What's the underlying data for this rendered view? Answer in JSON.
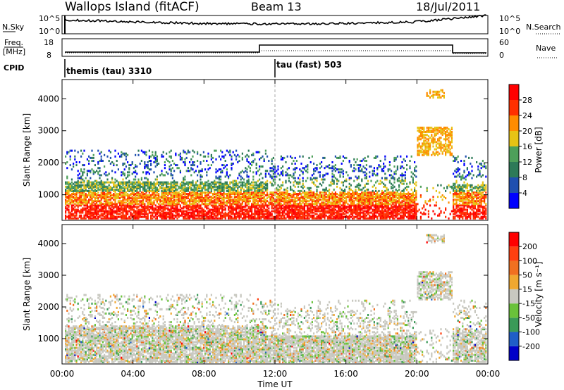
{
  "header": {
    "station": "Wallops Island (fitACF)",
    "beam": "Beam 13",
    "date": "18/Jul/2011"
  },
  "nsky_panel": {
    "left_label": "N.Sky",
    "left_ticks": [
      "10^5",
      "10^0"
    ],
    "right_label": "N.Search",
    "right_ticks": [
      "10^5",
      "10^0"
    ]
  },
  "freq_panel": {
    "left_label_top": "Freq.",
    "left_label_bottom": "[MHz]",
    "left_ticks": [
      "18",
      "8"
    ],
    "right_label": "Nave",
    "right_ticks": [
      "60",
      "0"
    ]
  },
  "cpid_panel": {
    "label": "CPID",
    "modes": [
      {
        "name": "themis (tau) 3310",
        "start": "00:00",
        "end": "12:00"
      },
      {
        "name": "tau (fast) 503",
        "start": "12:00",
        "end": "00:00"
      }
    ]
  },
  "chart_data": [
    {
      "type": "heatmap",
      "title": "",
      "xlabel": "",
      "ylabel": "Slant Range [km]",
      "ylim": [
        200,
        4600
      ],
      "yticks": [
        "1000",
        "2000",
        "3000",
        "4000"
      ],
      "colorbar": {
        "label": "Power [dB]",
        "ticks": [
          "4",
          "8",
          "12",
          "16",
          "20",
          "24",
          "28"
        ],
        "colors": [
          "#0000ff",
          "#1f4fb0",
          "#2d7a58",
          "#4ea05a",
          "#e7c315",
          "#ff8c00",
          "#ff3000",
          "#ff0000"
        ]
      },
      "description_regions": [
        {
          "time": "00:00-12:00",
          "range_km": [
            400,
            1400
          ],
          "level_db": 24
        },
        {
          "time": "12:00-20:00",
          "range_km": [
            300,
            900
          ],
          "level_db": 28
        },
        {
          "time": "20:00-22:00",
          "range_km": [
            2300,
            3000
          ],
          "level_db": 20
        },
        {
          "time": "22:00-00:00",
          "range_km": [
            300,
            700
          ],
          "level_db": 28
        }
      ]
    },
    {
      "type": "heatmap",
      "title": "",
      "xlabel": "Time UT",
      "ylabel": "Slant Range [km]",
      "ylim": [
        200,
        4600
      ],
      "yticks": [
        "1000",
        "2000",
        "3000",
        "4000"
      ],
      "xticks": [
        "00:00",
        "04:00",
        "08:00",
        "12:00",
        "16:00",
        "20:00",
        "00:00"
      ],
      "colorbar": {
        "label": "Velocity [m s⁻¹]",
        "ticks": [
          "200",
          "100",
          "50",
          "15",
          "-15",
          "-50",
          "-100",
          "-200"
        ],
        "colors": [
          "#0000c8",
          "#1f5ec8",
          "#3a9a58",
          "#6ac23a",
          "#c8c8c0",
          "#f0a830",
          "#f07020",
          "#ff4010",
          "#ff0000"
        ]
      },
      "description_regions": [
        {
          "time": "00:00-20:00",
          "range_km": [
            400,
            1300
          ],
          "velocity": "ground scatter (grey)"
        },
        {
          "time": "20:00-22:00",
          "range_km": [
            2200,
            3000
          ],
          "velocity": "ground scatter (grey)"
        }
      ]
    }
  ]
}
